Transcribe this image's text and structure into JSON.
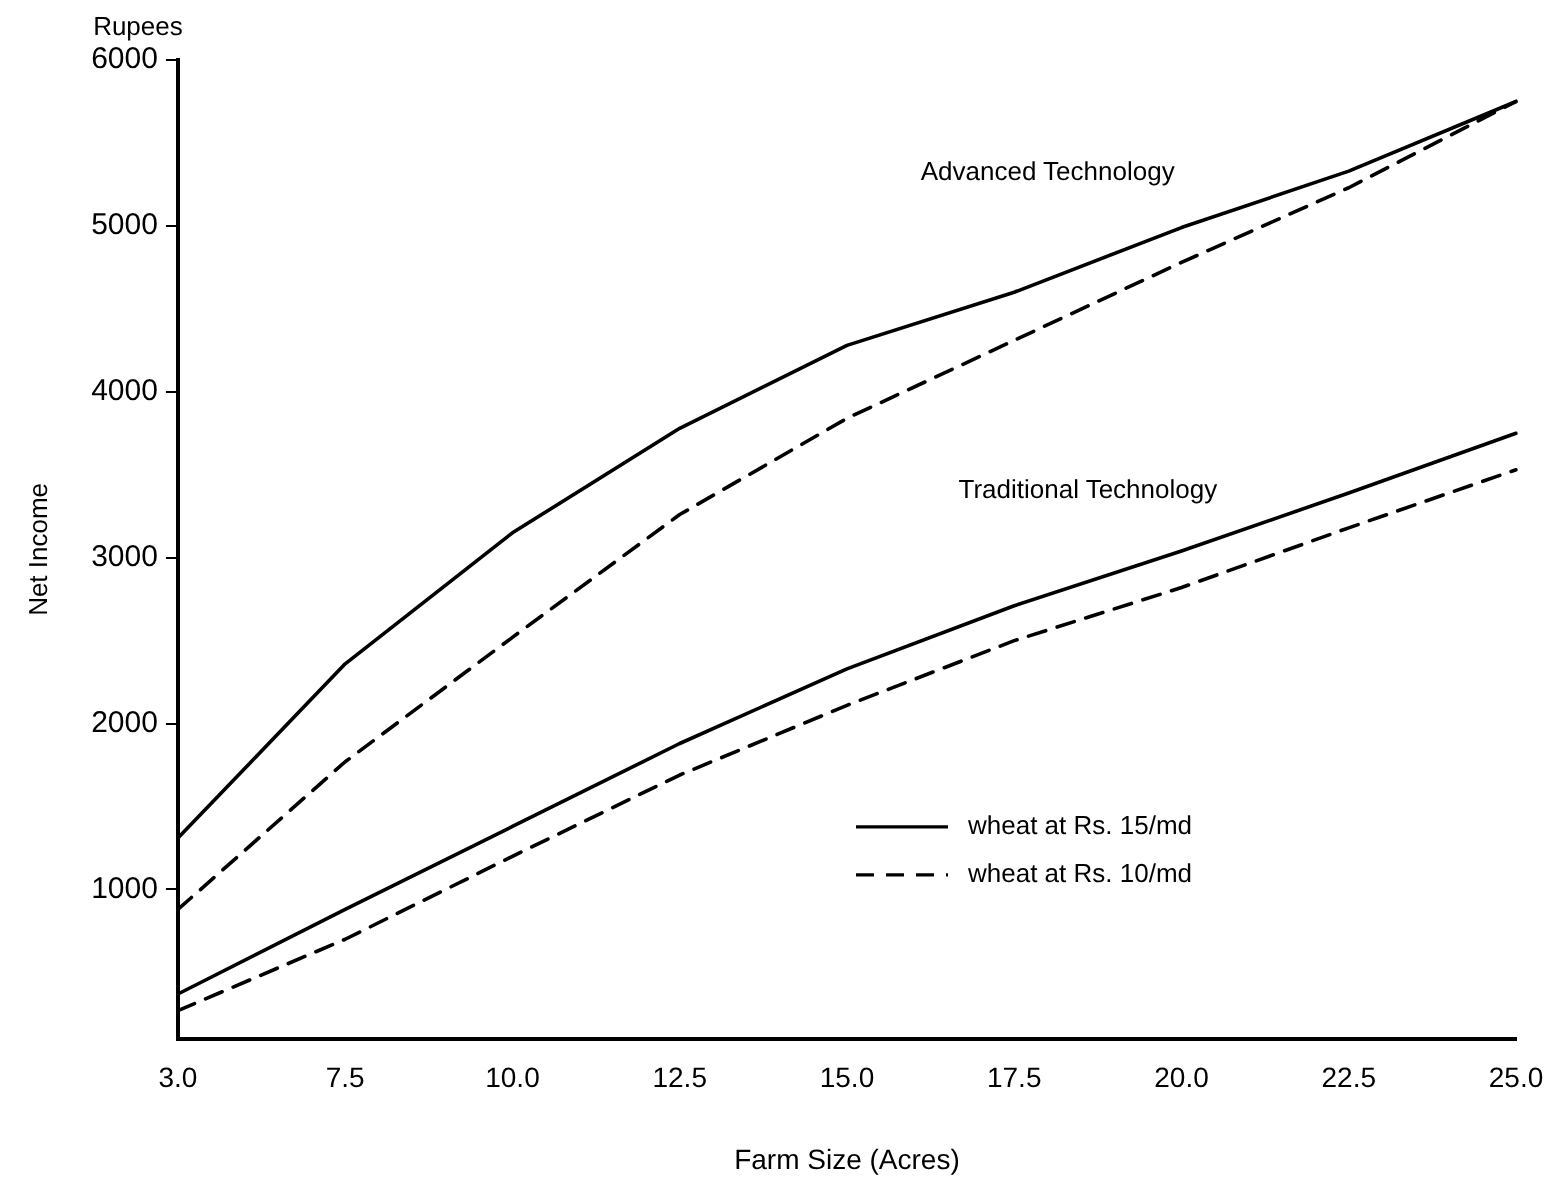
{
  "chart_data": {
    "type": "line",
    "xlabel": "Farm Size (Acres)",
    "ylabel": "Net Income",
    "categories": [
      "3.0",
      "7.5",
      "10.0",
      "12.5",
      "15.0",
      "17.5",
      "20.0",
      "22.5",
      "25.0"
    ],
    "ylim": [
      100,
      6000
    ],
    "yticks": [
      1000,
      2000,
      3000,
      4000,
      5000,
      6000
    ],
    "series": [
      {
        "name": "wheat at Rs. 15/md",
        "color": "#000000",
        "line_style": "solid",
        "values": [
          1310,
          2360,
          3150,
          3780,
          4280,
          4600,
          4990,
          5330,
          5750
        ]
      },
      {
        "name": "wheat at Rs. 10/md",
        "color": "#000000",
        "line_style": "dashed",
        "values": [
          880,
          1770,
          2520,
          3260,
          3840,
          4310,
          4780,
          5230,
          5750
        ]
      },
      {
        "color": "#000000",
        "line_style": "solid",
        "values": [
          370,
          880,
          1380,
          1880,
          2330,
          2710,
          3040,
          3390,
          3750
        ]
      },
      {
        "color": "#000000",
        "line_style": "dashed",
        "values": [
          270,
          700,
          1200,
          1690,
          2110,
          2500,
          2820,
          3180,
          3530
        ]
      }
    ],
    "annotations": [
      "Rupees",
      "Advanced Technology",
      "Traditional Technology"
    ],
    "legend": "bottom right"
  }
}
